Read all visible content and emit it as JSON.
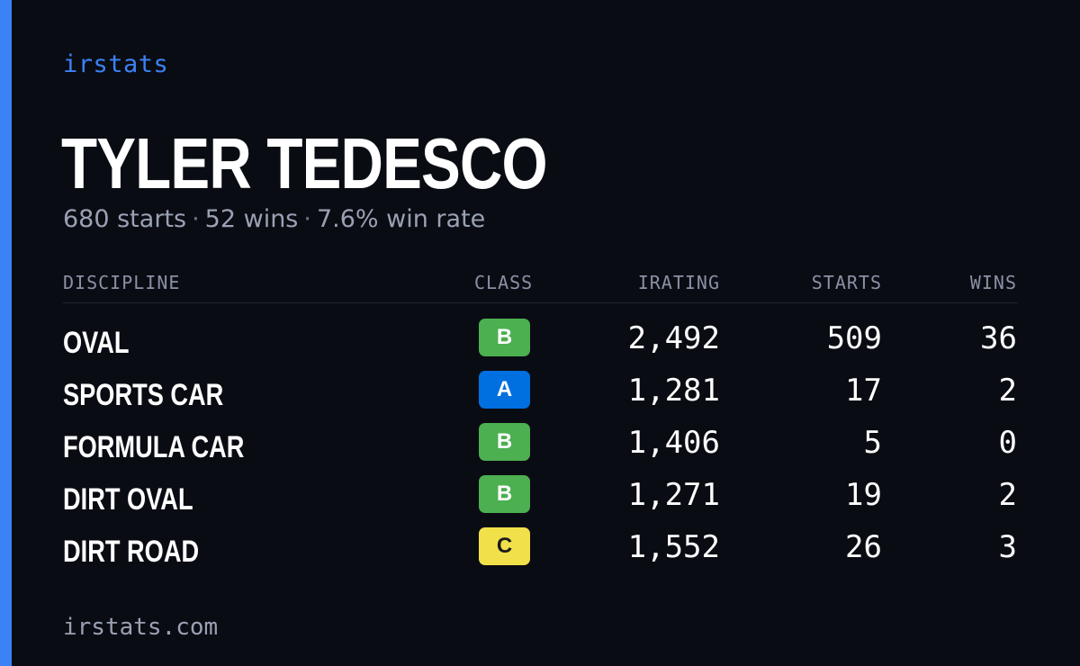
{
  "brand": "irstats",
  "driver": {
    "name": "TYLER TEDESCO",
    "starts_text": "680 starts",
    "wins_text": "52 wins",
    "winrate_text": "7.6% win rate",
    "separator": "·"
  },
  "table": {
    "headers": {
      "discipline": "DISCIPLINE",
      "class": "CLASS",
      "irating": "IRATING",
      "starts": "STARTS",
      "wins": "WINS"
    },
    "rows": [
      {
        "discipline": "OVAL",
        "class": "B",
        "irating": "2,492",
        "starts": "509",
        "wins": "36"
      },
      {
        "discipline": "SPORTS CAR",
        "class": "A",
        "irating": "1,281",
        "starts": "17",
        "wins": "2"
      },
      {
        "discipline": "FORMULA CAR",
        "class": "B",
        "irating": "1,406",
        "starts": "5",
        "wins": "0"
      },
      {
        "discipline": "DIRT OVAL",
        "class": "B",
        "irating": "1,271",
        "starts": "19",
        "wins": "2"
      },
      {
        "discipline": "DIRT ROAD",
        "class": "C",
        "irating": "1,552",
        "starts": "26",
        "wins": "3"
      }
    ]
  },
  "class_colors": {
    "A": {
      "bg": "#0070e0",
      "fg": "#ffffff"
    },
    "B": {
      "bg": "#4caf50",
      "fg": "#ffffff"
    },
    "C": {
      "bg": "#f1e04a",
      "fg": "#1a1a1a"
    }
  },
  "colors": {
    "accent": "#3b82f6",
    "background": "#0a0c13"
  },
  "footer": "irstats.com"
}
